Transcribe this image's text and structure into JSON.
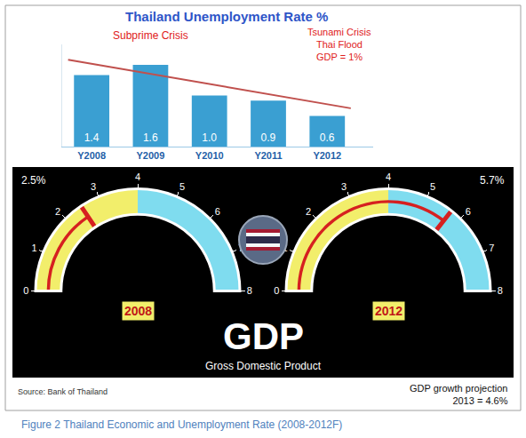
{
  "title": "Figure 2 Thailand Economic and Unemployment Rate (2008-2012F)",
  "source": "Source: Bank of Thailand",
  "projection": [
    "GDP growth projection",
    "2013 = 4.6%"
  ],
  "panel": {
    "title": "GDP",
    "subtitle": "Gross Domestic Product"
  },
  "chart_data": [
    {
      "type": "bar",
      "title": "Thailand Unemployment Rate %",
      "categories": [
        "Y2008",
        "Y2009",
        "Y2010",
        "Y2011",
        "Y2012"
      ],
      "series": [
        {
          "type": "bar",
          "values": [
            1.4,
            1.6,
            1.0,
            0.9,
            0.6
          ],
          "value_labels": [
            "1.4",
            "1.6",
            "1.0",
            "0.9",
            "0.6"
          ],
          "color": "#3a9fd2"
        },
        {
          "type": "line",
          "x": [
            -0.4,
            4.4
          ],
          "values": [
            1.7,
            0.75
          ],
          "color": "#c0504d"
        }
      ],
      "ylim": [
        0,
        2
      ],
      "tick_labels": "x",
      "data_labels": true,
      "grid": false,
      "annotations": [
        {
          "text": "Subprime Crisis",
          "category": "Y2009"
        },
        {
          "text": "Tsunami Crisis",
          "category": "Y2011"
        },
        {
          "text": "Thai Flood",
          "category": "Y2011"
        },
        {
          "text": "GDP = 1%",
          "category": "Y2011"
        }
      ]
    },
    {
      "type": "gauge",
      "title": "2008",
      "value": 2.5,
      "value_label": "2.5%",
      "color": "#d62020",
      "ylim": [
        0,
        8
      ],
      "yticks": [
        0,
        1,
        2,
        3,
        4,
        5,
        6,
        7,
        8
      ],
      "bands": [
        {
          "range": [
            0,
            4
          ],
          "color": "#f2ee6b"
        },
        {
          "range": [
            4,
            8
          ],
          "color": "#7fdcef"
        }
      ]
    },
    {
      "type": "gauge",
      "title": "2012",
      "value": 5.7,
      "value_label": "5.7%",
      "color": "#d62020",
      "ylim": [
        0,
        8
      ],
      "yticks": [
        0,
        1,
        2,
        3,
        4,
        5,
        6,
        7,
        8
      ],
      "bands": [
        {
          "range": [
            0,
            4
          ],
          "color": "#f2ee6b"
        },
        {
          "range": [
            4,
            8
          ],
          "color": "#7fdcef"
        }
      ]
    }
  ]
}
